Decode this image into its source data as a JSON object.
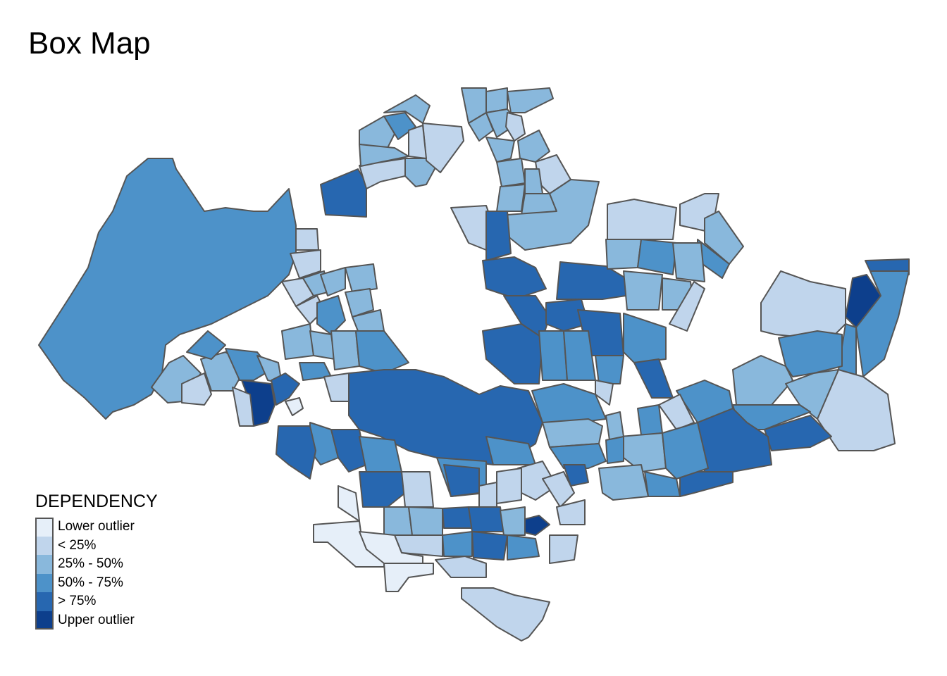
{
  "title": "Box Map",
  "legend": {
    "title": "DEPENDENCY",
    "items": [
      {
        "label": "Lower outlier",
        "color": "#e6eff9"
      },
      {
        "label": "< 25%",
        "color": "#c0d5ec"
      },
      {
        "label": "25% - 50%",
        "color": "#89b8dc"
      },
      {
        "label": "50% - 75%",
        "color": "#4d92c9"
      },
      {
        "label": "> 75%",
        "color": "#2767b0"
      },
      {
        "label": "Upper outlier",
        "color": "#0d3f8c"
      }
    ]
  },
  "map": {
    "type": "choropleth",
    "variable": "DEPENDENCY",
    "border_color": "#555555"
  }
}
